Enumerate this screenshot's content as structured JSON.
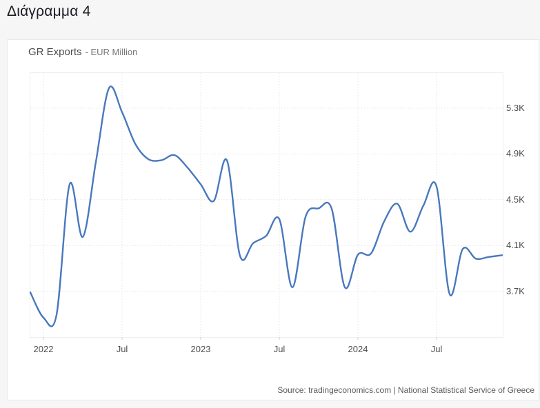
{
  "page_title": "Διάγραμμα 4",
  "chart": {
    "title": "GR Exports",
    "subtitle": "- EUR Million",
    "source": "Source: tradingeconomics.com | National Statistical Service of Greece",
    "line_color": "#4878bd",
    "grid_color": "#e4e4e6",
    "tick_color": "#cfcfcf"
  },
  "chart_data": {
    "type": "line",
    "title": "GR Exports",
    "subtitle": "EUR Million",
    "unit": "EUR Million",
    "legend": "none",
    "grid": "dotted",
    "ylim": [
      3290,
      5610
    ],
    "y_ticks": [
      {
        "label": "5.3K",
        "value": 5300
      },
      {
        "label": "4.9K",
        "value": 4900
      },
      {
        "label": "4.5K",
        "value": 4500
      },
      {
        "label": "4.1K",
        "value": 4100
      },
      {
        "label": "3.7K",
        "value": 3700
      }
    ],
    "x_ticks": [
      {
        "label": "2022",
        "month_index": 1
      },
      {
        "label": "Jul",
        "month_index": 7
      },
      {
        "label": "2023",
        "month_index": 13
      },
      {
        "label": "Jul",
        "month_index": 19
      },
      {
        "label": "2024",
        "month_index": 25
      },
      {
        "label": "Jul",
        "month_index": 31
      }
    ],
    "x": [
      "Dec 2021",
      "Jan 2022",
      "Feb 2022",
      "Mar 2022",
      "Apr 2022",
      "May 2022",
      "Jun 2022",
      "Jul 2022",
      "Aug 2022",
      "Sep 2022",
      "Oct 2022",
      "Nov 2022",
      "Dec 2022",
      "Jan 2023",
      "Feb 2023",
      "Mar 2023",
      "Apr 2023",
      "May 2023",
      "Jun 2023",
      "Jul 2023",
      "Aug 2023",
      "Sep 2023",
      "Oct 2023",
      "Nov 2023",
      "Dec 2023",
      "Jan 2024",
      "Feb 2024",
      "Mar 2024",
      "Apr 2024",
      "May 2024",
      "Jun 2024",
      "Jul 2024",
      "Aug 2024",
      "Sep 2024",
      "Oct 2024",
      "Nov 2024",
      "Dec 2024"
    ],
    "values": [
      3690,
      3470,
      3495,
      4635,
      4175,
      4830,
      5475,
      5265,
      4990,
      4855,
      4845,
      4890,
      4780,
      4635,
      4490,
      4845,
      4010,
      4120,
      4185,
      4330,
      3735,
      4350,
      4425,
      4420,
      3735,
      4020,
      4030,
      4310,
      4465,
      4220,
      4450,
      4615,
      3675,
      4070,
      3985,
      4000,
      4015
    ]
  }
}
